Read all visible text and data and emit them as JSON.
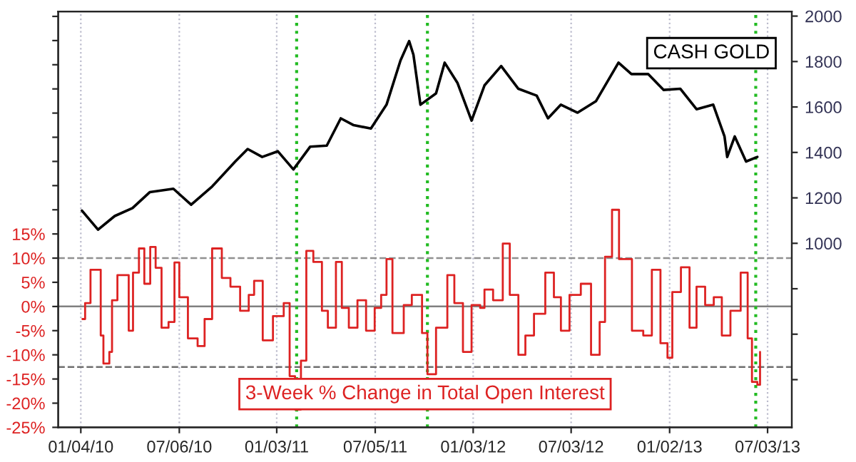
{
  "chart_data": {
    "type": "line",
    "xlim": [
      "2009-11-23",
      "2013-08-17"
    ],
    "xticks": [
      {
        "value": "2010-01-04",
        "label": "01/04/10"
      },
      {
        "value": "2010-07-06",
        "label": "07/06/10"
      },
      {
        "value": "2011-01-03",
        "label": "01/03/11"
      },
      {
        "value": "2011-07-05",
        "label": "07/05/11"
      },
      {
        "value": "2012-01-03",
        "label": "01/03/12"
      },
      {
        "value": "2012-07-03",
        "label": "07/03/12"
      },
      {
        "value": "2013-01-02",
        "label": "01/02/13"
      },
      {
        "value": "2013-07-03",
        "label": "07/03/13"
      }
    ],
    "ylim": [
      -25,
      61
    ],
    "yticks": [
      {
        "value": -25,
        "label": "-25%"
      },
      {
        "value": -20,
        "label": "-20%"
      },
      {
        "value": -15,
        "label": "-15%"
      },
      {
        "value": -10,
        "label": "-10%"
      },
      {
        "value": -5,
        "label": "-5%"
      },
      {
        "value": 0,
        "label": "0%"
      },
      {
        "value": 5,
        "label": "5%"
      },
      {
        "value": 10,
        "label": "10%"
      },
      {
        "value": 15,
        "label": "15%"
      },
      {
        "value": 20,
        "label": null
      },
      {
        "value": 25,
        "label": null
      },
      {
        "value": 30,
        "label": null
      },
      {
        "value": 35,
        "label": null
      },
      {
        "value": 40,
        "label": null
      },
      {
        "value": 45,
        "label": null
      },
      {
        "value": 50,
        "label": null
      },
      {
        "value": 55,
        "label": null
      },
      {
        "value": 60,
        "label": null
      }
    ],
    "y2lim": [
      190,
      2020
    ],
    "y2ticks": [
      {
        "value": 400,
        "label": null
      },
      {
        "value": 600,
        "label": null
      },
      {
        "value": 800,
        "label": null
      },
      1000,
      1200,
      1400,
      1600,
      1800,
      2000
    ],
    "grid": "x",
    "legend": false,
    "ref_lines": [
      {
        "axis": "y",
        "value": 0,
        "color": "#808080",
        "line_style": "solid"
      },
      {
        "axis": "y",
        "value": 10,
        "color": "#909090",
        "line_style": "dashed"
      },
      {
        "axis": "y",
        "value": -12.5,
        "color": "#707070",
        "line_style": "dashed"
      },
      {
        "axis": "x",
        "value": "2011-02-09",
        "color": "#22bb22",
        "line_style": "dotted"
      },
      {
        "axis": "x",
        "value": "2011-10-10",
        "color": "#22bb22",
        "line_style": "dotted"
      },
      {
        "axis": "x",
        "value": "2013-06-11",
        "color": "#22bb22",
        "line_style": "dotted"
      }
    ],
    "series": [
      {
        "name": "CASH GOLD",
        "color": "#000000",
        "axis": "y2",
        "x": [
          "2010-01-06",
          "2010-02-05",
          "2010-03-08",
          "2010-04-10",
          "2010-05-12",
          "2010-06-25",
          "2010-07-28",
          "2010-09-05",
          "2010-10-18",
          "2010-11-10",
          "2010-12-07",
          "2011-01-05",
          "2011-02-03",
          "2011-03-06",
          "2011-04-06",
          "2011-05-02",
          "2011-05-26",
          "2011-06-27",
          "2011-07-26",
          "2011-08-21",
          "2011-09-06",
          "2011-09-14",
          "2011-09-27",
          "2011-10-26",
          "2011-11-11",
          "2011-12-05",
          "2011-12-31",
          "2012-01-24",
          "2012-02-24",
          "2012-03-27",
          "2012-04-30",
          "2012-05-21",
          "2012-06-14",
          "2012-07-15",
          "2012-08-18",
          "2012-09-29",
          "2012-10-23",
          "2012-11-23",
          "2012-12-22",
          "2013-01-22",
          "2013-02-21",
          "2013-03-24",
          "2013-04-14",
          "2013-04-19",
          "2013-05-03",
          "2013-05-24",
          "2013-06-14"
        ],
        "values": [
          1144,
          1060,
          1120,
          1155,
          1225,
          1240,
          1170,
          1250,
          1360,
          1415,
          1380,
          1405,
          1325,
          1425,
          1430,
          1550,
          1520,
          1505,
          1610,
          1805,
          1890,
          1830,
          1610,
          1660,
          1795,
          1705,
          1540,
          1695,
          1780,
          1680,
          1650,
          1550,
          1610,
          1575,
          1625,
          1795,
          1745,
          1745,
          1675,
          1680,
          1590,
          1610,
          1470,
          1380,
          1470,
          1360,
          1380
        ]
      },
      {
        "name": "3-Week % Change in Total Open Interest",
        "color": "#dd2222",
        "type": "step",
        "axis": "y",
        "x": [
          "2010-01-07",
          "2010-01-12",
          "2010-01-22",
          "2010-02-10",
          "2010-02-15",
          "2010-02-26",
          "2010-03-03",
          "2010-03-13",
          "2010-03-24",
          "2010-04-03",
          "2010-04-11",
          "2010-04-22",
          "2010-05-02",
          "2010-05-13",
          "2010-05-23",
          "2010-06-03",
          "2010-06-16",
          "2010-06-27",
          "2010-07-06",
          "2010-07-22",
          "2010-08-09",
          "2010-08-22",
          "2010-09-05",
          "2010-09-23",
          "2010-10-09",
          "2010-10-27",
          "2010-11-12",
          "2010-11-22",
          "2010-12-08",
          "2010-12-27",
          "2011-01-16",
          "2011-01-27",
          "2011-02-06",
          "2011-02-17",
          "2011-02-27",
          "2011-03-12",
          "2011-03-28",
          "2011-04-08",
          "2011-04-23",
          "2011-05-04",
          "2011-05-17",
          "2011-06-02",
          "2011-06-18",
          "2011-07-04",
          "2011-07-16",
          "2011-07-26",
          "2011-08-06",
          "2011-08-27",
          "2011-09-11",
          "2011-09-30",
          "2011-10-10",
          "2011-10-26",
          "2011-11-16",
          "2011-11-29",
          "2011-12-15",
          "2011-12-31",
          "2012-01-16",
          "2012-01-24",
          "2012-02-09",
          "2012-02-27",
          "2012-03-11",
          "2012-03-27",
          "2012-04-09",
          "2012-04-25",
          "2012-05-16",
          "2012-06-01",
          "2012-06-14",
          "2012-06-30",
          "2012-07-21",
          "2012-08-09",
          "2012-08-25",
          "2012-09-04",
          "2012-09-17",
          "2012-09-30",
          "2012-10-24",
          "2012-11-14",
          "2012-11-30",
          "2012-12-16",
          "2012-12-29",
          "2013-01-07",
          "2013-01-23",
          "2013-02-08",
          "2013-02-21",
          "2013-03-09",
          "2013-03-25",
          "2013-04-09",
          "2013-04-25",
          "2013-05-14",
          "2013-05-27",
          "2013-06-04",
          "2013-06-14",
          "2013-06-19"
        ],
        "values": [
          -2.6,
          0.7,
          7.6,
          -6,
          -11.8,
          -9.4,
          1.3,
          6.5,
          6.5,
          -5,
          7,
          12,
          4.7,
          12.3,
          8,
          -4.4,
          -3.2,
          9.1,
          1.9,
          -6.6,
          -8.2,
          -2.6,
          12,
          5.9,
          4.1,
          -0.9,
          2.4,
          5.3,
          -7,
          -2,
          0.7,
          -14.4,
          -21.3,
          -11.2,
          11.5,
          9.2,
          -0.9,
          -4.4,
          9.2,
          -0.3,
          -4.4,
          1.3,
          -5,
          -0.3,
          2.4,
          9.8,
          -5.5,
          0.3,
          2.4,
          -5.5,
          -14,
          -4.4,
          6.5,
          0.7,
          -9.4,
          0.3,
          -0.3,
          3.5,
          1.3,
          13,
          2.4,
          -10,
          -6,
          -1.5,
          7,
          1.9,
          -5,
          2.4,
          4.7,
          -10,
          -3.2,
          10.3,
          20,
          9.8,
          -5,
          -6,
          7.6,
          -7.6,
          -10.6,
          3,
          8.1,
          -4.4,
          4.1,
          0.3,
          1.9,
          -6,
          -0.9,
          7,
          -6.6,
          -15.6,
          -16.2,
          -9.4
        ]
      }
    ]
  }
}
